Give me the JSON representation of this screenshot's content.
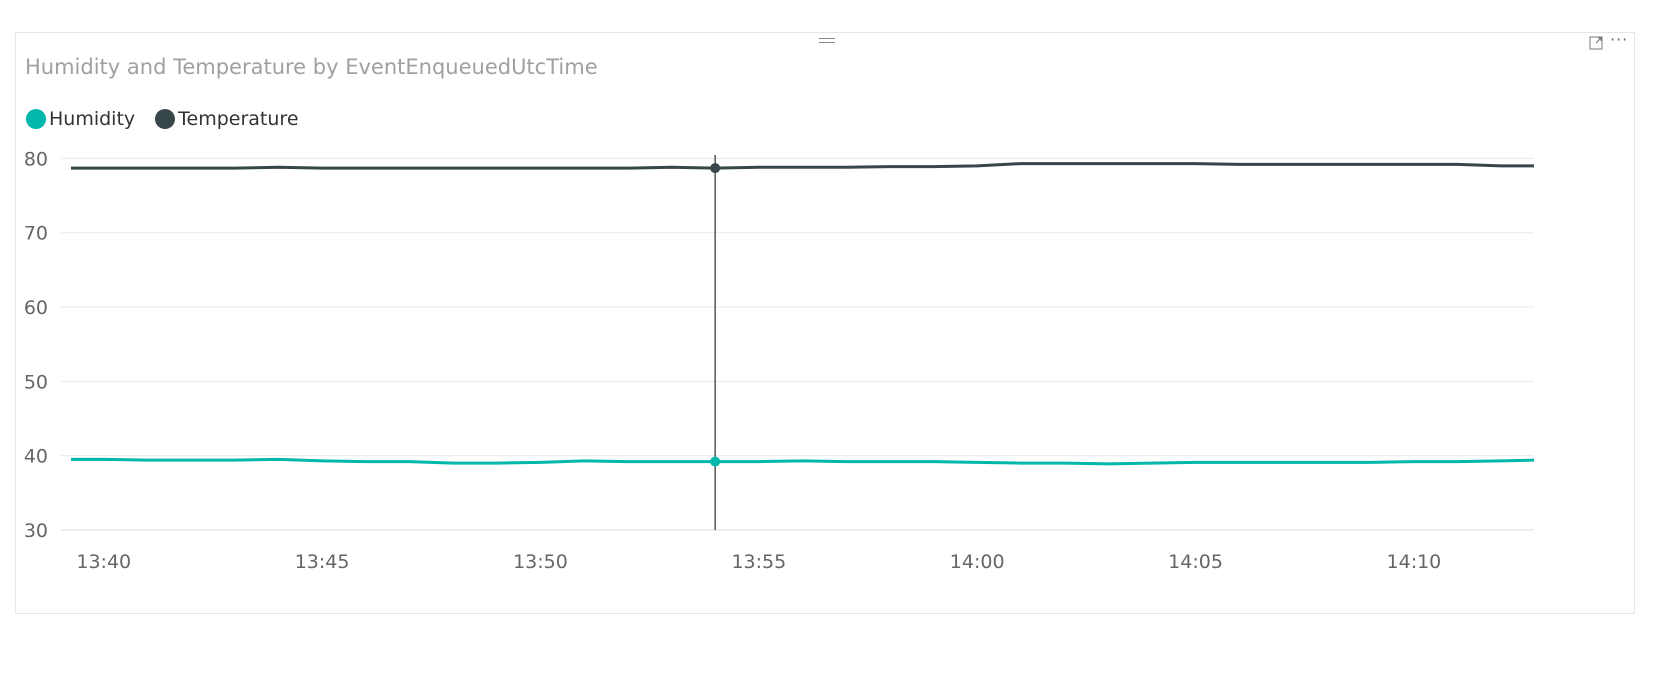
{
  "visual": {
    "title": "Humidity and Temperature by EventEnqueuedUtcTime",
    "icons": {
      "drag": "drag-handle-icon",
      "focus": "focus-mode-icon",
      "more": "more-options-icon"
    },
    "more_label": "···"
  },
  "chart_data": {
    "type": "line",
    "title": "Humidity and Temperature by EventEnqueuedUtcTime",
    "xlabel": "",
    "ylabel": "",
    "x_range": [
      "13:39:15",
      "14:12:45"
    ],
    "xticks": [
      "13:40",
      "13:45",
      "13:50",
      "13:55",
      "14:00",
      "14:05",
      "14:10"
    ],
    "yticks": [
      30,
      40,
      50,
      60,
      70,
      80
    ],
    "ylim": [
      30,
      81
    ],
    "grid": true,
    "legend_position": "top-left",
    "series": [
      {
        "name": "Humidity",
        "color": "#01b8aa",
        "points": [
          [
            "13:39:15",
            39.5
          ],
          [
            "13:40:00",
            39.5
          ],
          [
            "13:41:00",
            39.4
          ],
          [
            "13:42:00",
            39.4
          ],
          [
            "13:43:00",
            39.4
          ],
          [
            "13:44:00",
            39.5
          ],
          [
            "13:45:00",
            39.3
          ],
          [
            "13:46:00",
            39.2
          ],
          [
            "13:47:00",
            39.2
          ],
          [
            "13:48:00",
            39.0
          ],
          [
            "13:49:00",
            39.0
          ],
          [
            "13:50:00",
            39.1
          ],
          [
            "13:51:00",
            39.3
          ],
          [
            "13:52:00",
            39.2
          ],
          [
            "13:53:00",
            39.2
          ],
          [
            "13:54:00",
            39.2
          ],
          [
            "13:55:00",
            39.2
          ],
          [
            "13:56:00",
            39.3
          ],
          [
            "13:57:00",
            39.2
          ],
          [
            "13:58:00",
            39.2
          ],
          [
            "13:59:00",
            39.2
          ],
          [
            "14:00:00",
            39.1
          ],
          [
            "14:01:00",
            39.0
          ],
          [
            "14:02:00",
            39.0
          ],
          [
            "14:03:00",
            38.9
          ],
          [
            "14:04:00",
            39.0
          ],
          [
            "14:05:00",
            39.1
          ],
          [
            "14:06:00",
            39.1
          ],
          [
            "14:07:00",
            39.1
          ],
          [
            "14:08:00",
            39.1
          ],
          [
            "14:09:00",
            39.1
          ],
          [
            "14:10:00",
            39.2
          ],
          [
            "14:11:00",
            39.2
          ],
          [
            "14:12:00",
            39.3
          ],
          [
            "14:12:45",
            39.4
          ]
        ]
      },
      {
        "name": "Temperature",
        "color": "#374649",
        "points": [
          [
            "13:39:15",
            78.7
          ],
          [
            "13:40:00",
            78.7
          ],
          [
            "13:41:00",
            78.7
          ],
          [
            "13:42:00",
            78.7
          ],
          [
            "13:43:00",
            78.7
          ],
          [
            "13:44:00",
            78.8
          ],
          [
            "13:45:00",
            78.7
          ],
          [
            "13:46:00",
            78.7
          ],
          [
            "13:47:00",
            78.7
          ],
          [
            "13:48:00",
            78.7
          ],
          [
            "13:49:00",
            78.7
          ],
          [
            "13:50:00",
            78.7
          ],
          [
            "13:51:00",
            78.7
          ],
          [
            "13:52:00",
            78.7
          ],
          [
            "13:53:00",
            78.8
          ],
          [
            "13:54:00",
            78.7
          ],
          [
            "13:55:00",
            78.8
          ],
          [
            "13:56:00",
            78.8
          ],
          [
            "13:57:00",
            78.8
          ],
          [
            "13:58:00",
            78.9
          ],
          [
            "13:59:00",
            78.9
          ],
          [
            "14:00:00",
            79.0
          ],
          [
            "14:01:00",
            79.3
          ],
          [
            "14:02:00",
            79.3
          ],
          [
            "14:03:00",
            79.3
          ],
          [
            "14:04:00",
            79.3
          ],
          [
            "14:05:00",
            79.3
          ],
          [
            "14:06:00",
            79.2
          ],
          [
            "14:07:00",
            79.2
          ],
          [
            "14:08:00",
            79.2
          ],
          [
            "14:09:00",
            79.2
          ],
          [
            "14:10:00",
            79.2
          ],
          [
            "14:11:00",
            79.2
          ],
          [
            "14:12:00",
            79.0
          ],
          [
            "14:12:45",
            79.0
          ]
        ]
      }
    ],
    "hover": {
      "x": "13:54:00",
      "values": {
        "Humidity": 39.2,
        "Temperature": 78.7
      }
    }
  }
}
